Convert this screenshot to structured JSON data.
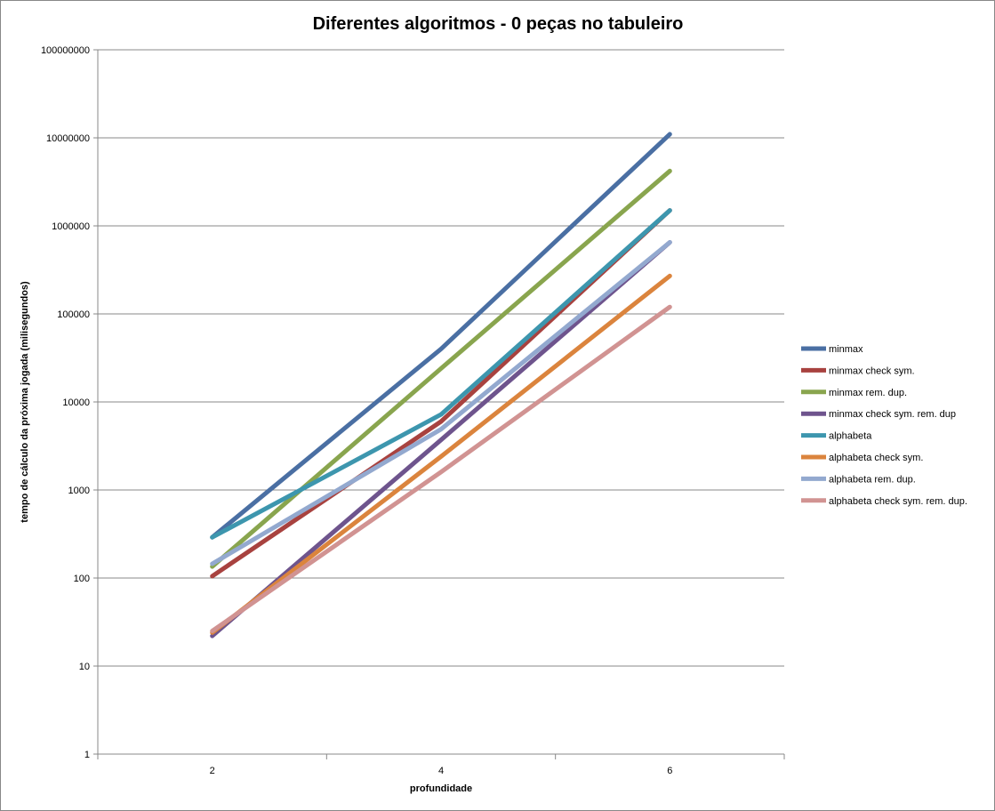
{
  "chart_data": {
    "type": "line",
    "title": "Diferentes algoritmos - 0 peças no tabuleiro",
    "xlabel": "profundidade",
    "ylabel": "tempo de cálculo da próxima jogada (milisegundos)",
    "y_scale": "log",
    "ylim": [
      1,
      100000000
    ],
    "y_ticks": [
      1,
      10,
      100,
      1000,
      10000,
      100000,
      1000000,
      10000000,
      100000000
    ],
    "y_tick_labels": [
      "1",
      "10",
      "100",
      "1000",
      "10000",
      "100000",
      "1000000",
      "10000000",
      "100000000"
    ],
    "categories": [
      "2",
      "4",
      "6"
    ],
    "grid": "horizontal major gridlines",
    "legend_position": "right",
    "series": [
      {
        "name": "minmax",
        "color": "#4a6fa3",
        "values": [
          290,
          40000,
          11000000
        ]
      },
      {
        "name": "minmax check sym.",
        "color": "#a8423f",
        "values": [
          105,
          6000,
          1500000
        ]
      },
      {
        "name": "minmax rem. dup.",
        "color": "#89a54e",
        "values": [
          135,
          24000,
          4200000
        ]
      },
      {
        "name": "minmax check sym. rem. dup",
        "color": "#6e548d",
        "values": [
          22,
          3700,
          650000
        ]
      },
      {
        "name": "alphabeta",
        "color": "#3d96ae",
        "values": [
          290,
          7200,
          1500000
        ]
      },
      {
        "name": "alphabeta check sym.",
        "color": "#db843d",
        "values": [
          24,
          2400,
          270000
        ]
      },
      {
        "name": "alphabeta rem. dup.",
        "color": "#93a9cf",
        "values": [
          145,
          4900,
          650000
        ]
      },
      {
        "name": "alphabeta check sym. rem. dup.",
        "color": "#d19392",
        "values": [
          25,
          1600,
          120000
        ]
      }
    ]
  }
}
